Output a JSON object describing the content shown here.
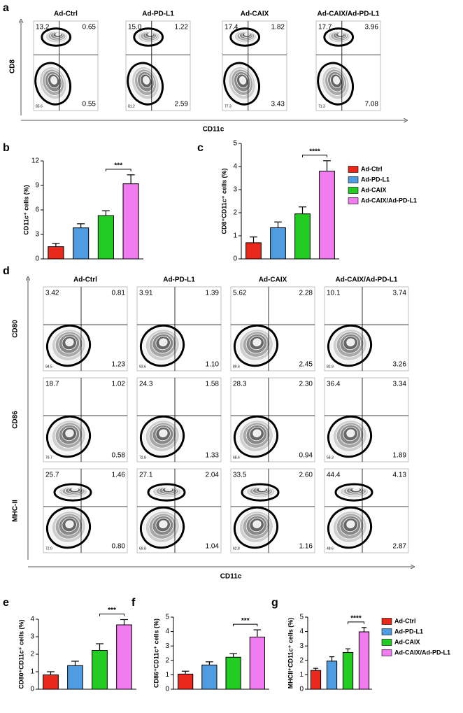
{
  "groups": [
    "Ad-Ctrl",
    "Ad-PD-L1",
    "Ad-CAIX",
    "Ad-CAIX/Ad-PD-L1"
  ],
  "group_colors": [
    "#e8291c",
    "#4f9de0",
    "#22cc22",
    "#f07cf0"
  ],
  "flow_a": {
    "label": "a",
    "x_label": "CD11c",
    "y_label": "CD8",
    "quadrants": [
      [
        "13.2",
        "0.65",
        "85.6",
        "0.55"
      ],
      [
        "15.0",
        "1.22",
        "81.2",
        "2.59"
      ],
      [
        "17.4",
        "1.82",
        "77.3",
        "3.43"
      ],
      [
        "17.7",
        "3.96",
        "71.3",
        "7.08"
      ]
    ]
  },
  "flow_d": {
    "label": "d",
    "x_label": "CD11c",
    "rows": [
      {
        "marker": "CD80",
        "quadrants": [
          [
            "3.42",
            "0.81",
            "94.5",
            "1.23"
          ],
          [
            "3.91",
            "1.39",
            "93.6",
            "1.10"
          ],
          [
            "5.62",
            "2.28",
            "89.6",
            "2.45"
          ],
          [
            "10.1",
            "3.74",
            "82.9",
            "3.26"
          ]
        ]
      },
      {
        "marker": "CD86",
        "quadrants": [
          [
            "18.7",
            "1.02",
            "79.7",
            "0.58"
          ],
          [
            "24.3",
            "1.58",
            "72.8",
            "1.33"
          ],
          [
            "28.3",
            "2.30",
            "68.4",
            "0.94"
          ],
          [
            "36.4",
            "3.34",
            "58.3",
            "1.89"
          ]
        ]
      },
      {
        "marker": "MHC-II",
        "quadrants": [
          [
            "25.7",
            "1.46",
            "72.0",
            "0.80"
          ],
          [
            "27.1",
            "2.04",
            "69.8",
            "1.04"
          ],
          [
            "33.5",
            "2.60",
            "62.8",
            "1.16"
          ],
          [
            "44.4",
            "4.13",
            "48.6",
            "2.87"
          ]
        ]
      }
    ]
  },
  "chart_data": [
    {
      "type": "bar",
      "label": "b",
      "y_label": "CD11c⁺ cells (%)",
      "ylim": [
        0,
        12
      ],
      "yticks": [
        0,
        3,
        6,
        9,
        12
      ],
      "values": [
        1.5,
        3.8,
        5.3,
        9.2
      ],
      "errors": [
        0.4,
        0.5,
        0.6,
        1.1
      ],
      "significance": "***",
      "legend": false
    },
    {
      "type": "bar",
      "label": "c",
      "y_label": "CD8⁺CD11c⁺ cells (%)",
      "ylim": [
        0,
        5
      ],
      "yticks": [
        0,
        1,
        2,
        3,
        4,
        5
      ],
      "values": [
        0.7,
        1.35,
        1.95,
        3.8
      ],
      "errors": [
        0.25,
        0.25,
        0.3,
        0.45
      ],
      "significance": "****",
      "legend": true
    },
    {
      "type": "bar",
      "label": "e",
      "y_label": "CD80⁺CD11c⁺ cells (%)",
      "ylim": [
        0,
        4
      ],
      "yticks": [
        0,
        1,
        2,
        3,
        4
      ],
      "values": [
        0.82,
        1.35,
        2.22,
        3.68
      ],
      "errors": [
        0.18,
        0.25,
        0.38,
        0.3
      ],
      "significance": "***",
      "legend": false
    },
    {
      "type": "bar",
      "label": "f",
      "y_label": "CD86⁺CD11c⁺ cells (%)",
      "ylim": [
        0,
        5
      ],
      "yticks": [
        0,
        1,
        2,
        3,
        4,
        5
      ],
      "values": [
        1.05,
        1.68,
        2.22,
        3.62
      ],
      "errors": [
        0.2,
        0.22,
        0.25,
        0.5
      ],
      "significance": "***",
      "legend": false
    },
    {
      "type": "bar",
      "label": "g",
      "y_label": "MHCII⁺CD11c⁺ cells (%)",
      "ylim": [
        0,
        5
      ],
      "yticks": [
        0,
        1,
        2,
        3,
        4,
        5
      ],
      "values": [
        1.3,
        1.95,
        2.55,
        3.98
      ],
      "errors": [
        0.15,
        0.3,
        0.25,
        0.3
      ],
      "significance": "****",
      "legend": true
    }
  ]
}
